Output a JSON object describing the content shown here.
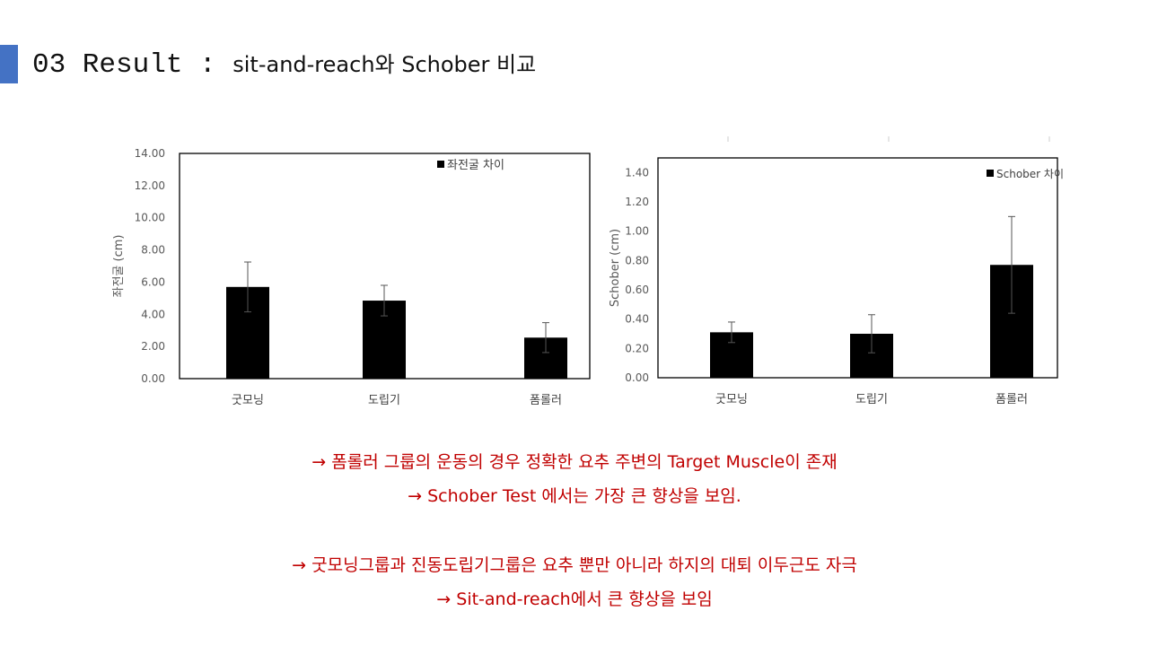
{
  "header": {
    "title_number": "03 Result",
    "title_sep": " : ",
    "title_text": "sit-and-reach와  Schober 비교",
    "accent_color": "#4472c4"
  },
  "chart_data": [
    {
      "type": "bar",
      "title": "",
      "xlabel": "",
      "ylabel": "좌전굴 (cm)",
      "legend": "좌전굴 차이",
      "legend_placement": "top-right",
      "categories": [
        "굿모닝",
        "도립기",
        "폼롤러"
      ],
      "series": [
        {
          "name": "좌전굴 차이",
          "values": [
            5.7,
            4.85,
            2.55
          ],
          "error": [
            1.55,
            0.95,
            0.93
          ]
        }
      ],
      "ylim": [
        0,
        14
      ],
      "yticks": [
        "0.00",
        "2.00",
        "4.00",
        "6.00",
        "8.00",
        "10.00",
        "12.00",
        "14.00"
      ],
      "grid": false,
      "bar_color": "#000000"
    },
    {
      "type": "bar",
      "title": "",
      "xlabel": "",
      "ylabel": "Schober (cm)",
      "legend": "Schober 차이",
      "legend_placement": "top-right",
      "categories": [
        "굿모닝",
        "도립기",
        "폼롤러"
      ],
      "series": [
        {
          "name": "Schober 차이",
          "values": [
            0.31,
            0.3,
            0.77
          ],
          "error": [
            0.07,
            0.13,
            0.33
          ]
        }
      ],
      "ylim": [
        0,
        1.5
      ],
      "yticks": [
        "0.00",
        "0.20",
        "0.40",
        "0.60",
        "0.80",
        "1.00",
        "1.20",
        "1.40"
      ],
      "grid": false,
      "bar_color": "#000000"
    }
  ],
  "notes": [
    "→ 폼롤러 그룹의 운동의 경우 정확한 요추 주변의 Target Muscle이 존재",
    "→ Schober Test 에서는 가장 큰 향상을 보임.",
    "→ 굿모닝그룹과 진동도립기그룹은 요추 뿐만 아니라 하지의 대퇴 이두근도 자극",
    "→ Sit-and-reach에서 큰 향상을 보임"
  ],
  "note_color": "#c00000"
}
